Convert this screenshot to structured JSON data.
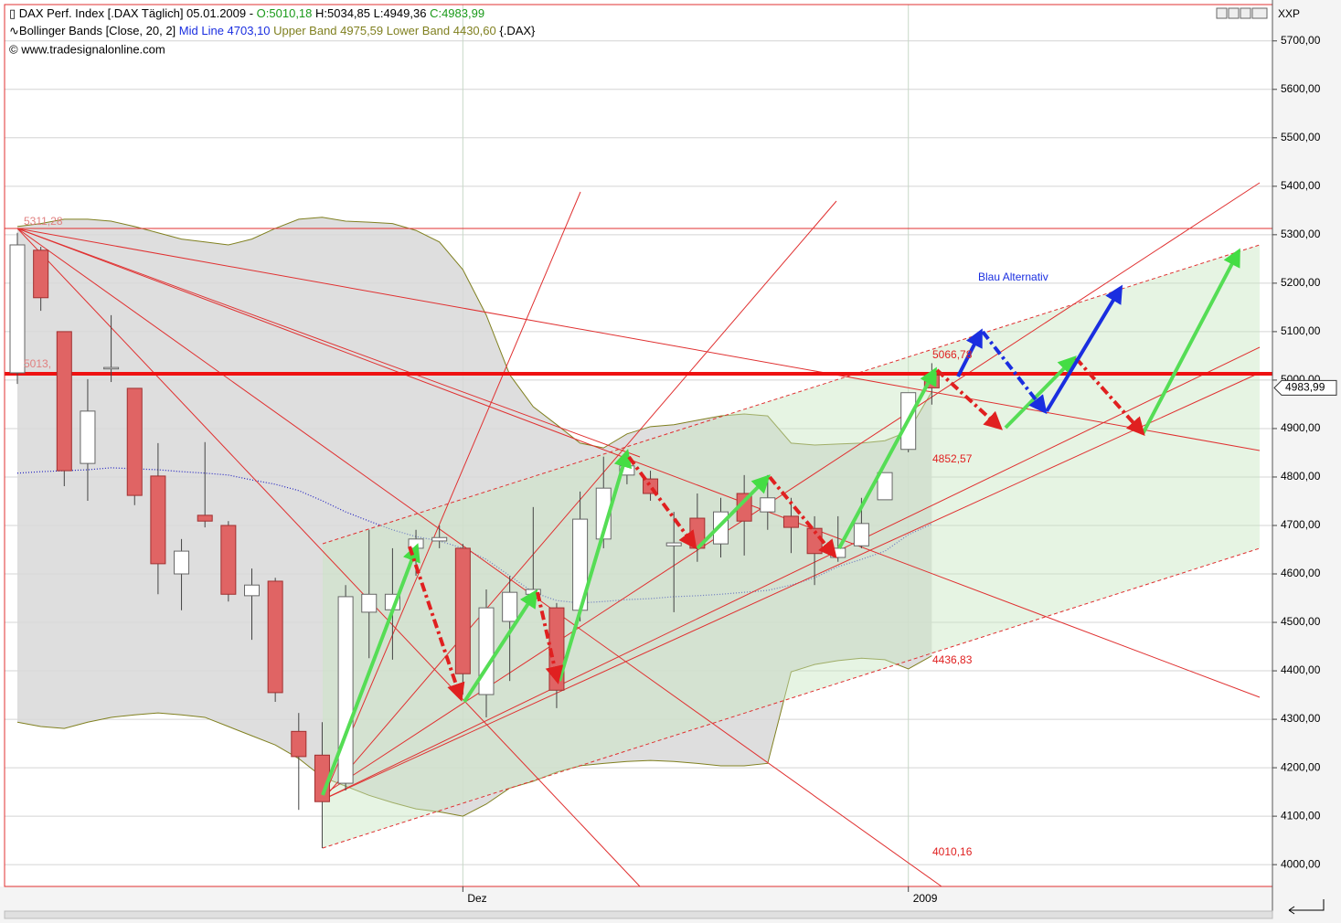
{
  "chart_data": {
    "type": "candlestick",
    "header": {
      "line1": {
        "instrument": "DAX Perf. Index [.DAX  Täglich] 05.01.2009 - ",
        "open": "O:5010,18",
        "high_low": " H:5034,85 L:4949,36 ",
        "close": "C:4983,99"
      },
      "line2": {
        "indicator": "Bollinger Bands [Close, 20, 2] ",
        "mid": "Mid Line 4703,10 ",
        "bands": "Upper Band 4975,59 Lower Band 4430,60 ",
        "symbol": "{.DAX}"
      },
      "line3": "© www.tradesignalonline.com",
      "axis_caption": "XXP"
    },
    "categories": [
      null,
      null,
      null,
      null,
      null,
      null,
      null,
      null,
      null,
      null,
      null,
      null,
      null,
      null,
      null,
      null,
      null,
      null,
      null,
      "Dez",
      null,
      null,
      null,
      null,
      null,
      null,
      null,
      null,
      null,
      null,
      null,
      null,
      null,
      null,
      null,
      null,
      null,
      null,
      "2009",
      null
    ],
    "open": [
      5015,
      5268,
      5100,
      4828,
      5023,
      4983,
      4802,
      4600,
      4721,
      4700,
      4555,
      4585,
      4275,
      4226,
      4168,
      4521,
      4526,
      4653,
      4668,
      4653,
      4351,
      4502,
      4558,
      4530,
      4525,
      4672,
      4804,
      4796,
      4658,
      4715,
      4662,
      4766,
      4728,
      4719,
      4694,
      4634,
      4658,
      4753,
      4857,
      5010.18
    ],
    "high": [
      5304,
      5275,
      5100,
      5002,
      5134,
      4983,
      4870,
      4672,
      4872,
      4709,
      4611,
      4592,
      4313,
      4294,
      4577,
      4691,
      4653,
      4691,
      4700,
      4662,
      4568,
      4596,
      4738,
      4540,
      4770,
      4842,
      4851,
      4813,
      4728,
      4766,
      4757,
      4804,
      4804,
      4757,
      4719,
      4719,
      4757,
      4809,
      4974,
      5034.85
    ],
    "low": [
      4992,
      5143,
      4781,
      4751,
      4996,
      4742,
      4558,
      4525,
      4696,
      4543,
      4464,
      4336,
      4113,
      4034,
      4153,
      4426,
      4423,
      4596,
      4653,
      4351,
      4304,
      4379,
      4540,
      4323,
      4502,
      4653,
      4785,
      4751,
      4521,
      4625,
      4634,
      4638,
      4691,
      4643,
      4577,
      4625,
      4653,
      4753,
      4851,
      4949.36
    ],
    "close": [
      5279,
      5170,
      4813,
      4936,
      5026,
      4762,
      4621,
      4647,
      4709,
      4558,
      4577,
      4355,
      4223,
      4130,
      4553,
      4558,
      4558,
      4672,
      4675,
      4394,
      4530,
      4562,
      4568,
      4360,
      4713,
      4777,
      4823,
      4766,
      4664,
      4653,
      4728,
      4709,
      4757,
      4696,
      4642,
      4653,
      4704,
      4809,
      4974,
      4983.99
    ],
    "up_color": "#ffffff",
    "down_color": "#e06464",
    "bands": {
      "upper": {
        "color": "#808020",
        "values": [
          5317,
          5323,
          5332,
          5332,
          5328,
          5317,
          5304,
          5291,
          5285,
          5279,
          5291,
          5313,
          5332,
          5336,
          5328,
          5326,
          5323,
          5309,
          5285,
          5228,
          5134,
          5011,
          4945,
          4908,
          4870,
          4860,
          4889,
          4904,
          4908,
          4917,
          4926,
          4930,
          4926,
          4870,
          4866,
          4868,
          4870,
          4875,
          4894,
          4976
        ]
      },
      "mid": {
        "color": "#2020c0",
        "values": [
          4808,
          4811,
          4813,
          4815,
          4819,
          4817,
          4815,
          4811,
          4808,
          4804,
          4794,
          4785,
          4772,
          4751,
          4728,
          4709,
          4691,
          4677,
          4668,
          4653,
          4630,
          4596,
          4562,
          4545,
          4540,
          4543,
          4547,
          4549,
          4553,
          4555,
          4558,
          4562,
          4566,
          4577,
          4592,
          4615,
          4630,
          4647,
          4681,
          4703
        ]
      },
      "lower": {
        "color": "#808020",
        "values": [
          4294,
          4285,
          4281,
          4294,
          4304,
          4309,
          4313,
          4309,
          4304,
          4285,
          4266,
          4247,
          4219,
          4181,
          4162,
          4143,
          4128,
          4115,
          4109,
          4100,
          4125,
          4158,
          4172,
          4191,
          4204,
          4209,
          4213,
          4215,
          4213,
          4209,
          4204,
          4204,
          4209,
          4398,
          4413,
          4421,
          4426,
          4423,
          4404,
          4431
        ]
      },
      "fill": "#d8d8d8"
    },
    "ylim": [
      3955,
      5775
    ],
    "yticks": [
      {
        "value": 4000,
        "label": "4000,00"
      },
      {
        "value": 4100,
        "label": "4100,00"
      },
      {
        "value": 4200,
        "label": "4200,00"
      },
      {
        "value": 4300,
        "label": "4300,00"
      },
      {
        "value": 4400,
        "label": "4400,00"
      },
      {
        "value": 4500,
        "label": "4500,00"
      },
      {
        "value": 4600,
        "label": "4600,00"
      },
      {
        "value": 4700,
        "label": "4700,00"
      },
      {
        "value": 4800,
        "label": "4800,00"
      },
      {
        "value": 4900,
        "label": "4900,00"
      },
      {
        "value": 5000,
        "label": "5000,00"
      },
      {
        "value": 5100,
        "label": "5100,00"
      },
      {
        "value": 5200,
        "label": "5200,00"
      },
      {
        "value": 5300,
        "label": "5300,00"
      },
      {
        "value": 5400,
        "label": "5400,00"
      },
      {
        "value": 5500,
        "label": "5500,00"
      },
      {
        "value": 5600,
        "label": "5600,00"
      },
      {
        "value": 5700,
        "label": "5700,00"
      }
    ],
    "grid": true,
    "price_tag": "4983,99",
    "annotations": [
      "5311,28",
      "5013,",
      "5066,78",
      "4852,57",
      "4436,83",
      "4010,16",
      "Blau Alternativ"
    ]
  }
}
